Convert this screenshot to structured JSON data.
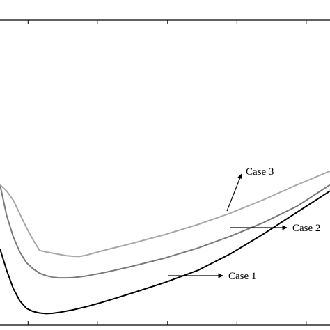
{
  "chart_data": {
    "type": "line",
    "title": "",
    "xlabel": "",
    "ylabel": "",
    "xlim": [
      0,
      1
    ],
    "ylim": [
      0,
      1
    ],
    "grid": false,
    "legend": "none",
    "series": [
      {
        "name": "Case 1",
        "color": "#000000",
        "x": [
          0,
          0.02,
          0.04,
          0.06,
          0.08,
          0.1,
          0.12,
          0.14,
          0.16,
          0.18,
          0.2,
          0.22,
          0.24,
          0.26,
          0.28,
          0.3,
          0.34,
          0.4,
          0.5,
          0.6,
          0.7,
          0.8,
          0.9,
          1.0
        ],
        "y": [
          0.25,
          0.18,
          0.12,
          0.08,
          0.055,
          0.045,
          0.04,
          0.038,
          0.039,
          0.042,
          0.046,
          0.05,
          0.055,
          0.06,
          0.066,
          0.072,
          0.085,
          0.105,
          0.14,
          0.18,
          0.235,
          0.3,
          0.37,
          0.44
        ]
      },
      {
        "name": "Case 2",
        "color": "#7a7a7a",
        "x": [
          0,
          0.02,
          0.04,
          0.06,
          0.08,
          0.1,
          0.12,
          0.14,
          0.16,
          0.18,
          0.2,
          0.22,
          0.24,
          0.26,
          0.28,
          0.3,
          0.34,
          0.4,
          0.5,
          0.6,
          0.7,
          0.8,
          0.9,
          1.0
        ],
        "y": [
          0.46,
          0.36,
          0.29,
          0.24,
          0.205,
          0.185,
          0.17,
          0.162,
          0.157,
          0.155,
          0.155,
          0.156,
          0.158,
          0.161,
          0.165,
          0.169,
          0.178,
          0.193,
          0.22,
          0.253,
          0.292,
          0.337,
          0.39,
          0.46
        ]
      },
      {
        "name": "Case 3",
        "color": "#a8a8a8",
        "x": [
          0,
          0.02,
          0.04,
          0.06,
          0.08,
          0.1,
          0.12,
          0.14,
          0.16,
          0.18,
          0.2,
          0.22,
          0.24,
          0.26,
          0.28,
          0.3,
          0.34,
          0.4,
          0.5,
          0.6,
          0.7,
          0.8,
          0.9,
          1.0
        ],
        "y": [
          0.46,
          0.44,
          0.41,
          0.365,
          0.32,
          0.28,
          0.245,
          0.24,
          0.236,
          0.232,
          0.228,
          0.226,
          0.225,
          0.229,
          0.235,
          0.241,
          0.252,
          0.268,
          0.297,
          0.33,
          0.368,
          0.412,
          0.46,
          0.505
        ]
      }
    ],
    "annotations": [
      {
        "text": "Case 1",
        "series": "Case 1"
      },
      {
        "text": "Case 2",
        "series": "Case 2"
      },
      {
        "text": "Case 3",
        "series": "Case 3"
      }
    ]
  }
}
